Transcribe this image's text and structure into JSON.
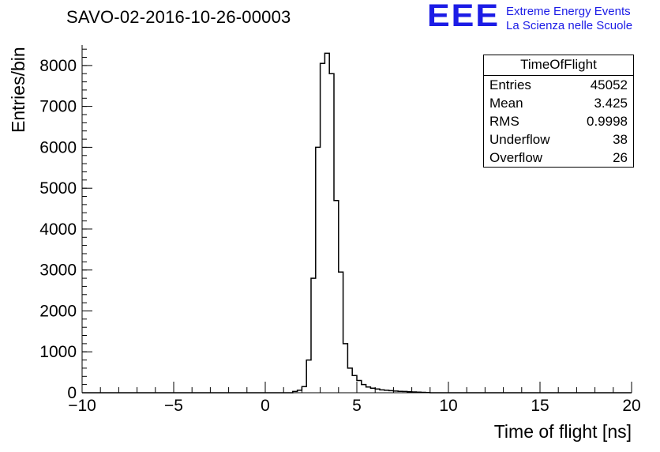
{
  "logo": {
    "text": "EEE",
    "line1": "Extreme Energy Events",
    "line2": "La Scienza nelle Scuole",
    "color": "#1c1ce6"
  },
  "stats": {
    "title": "TimeOfFlight",
    "rows": [
      {
        "label": "Entries",
        "value": "45052"
      },
      {
        "label": "Mean",
        "value": "3.425"
      },
      {
        "label": "RMS",
        "value": "0.9998"
      },
      {
        "label": "Underflow",
        "value": "38"
      },
      {
        "label": "Overflow",
        "value": "26"
      }
    ]
  },
  "chart_data": {
    "type": "histogram",
    "title": "SAVO-02-2016-10-26-00003",
    "xlabel": "Time of flight [ns]",
    "ylabel": "Entries/bin",
    "xlim": [
      -10,
      20
    ],
    "ylim": [
      0,
      8500
    ],
    "grid": false,
    "line_color": "#000000",
    "x_minor_step": 1,
    "y_minor_step": 200,
    "x_major_ticks": [
      {
        "v": -10,
        "label": "−10"
      },
      {
        "v": -5,
        "label": "−5"
      },
      {
        "v": 0,
        "label": "0"
      },
      {
        "v": 5,
        "label": "5"
      },
      {
        "v": 10,
        "label": "10"
      },
      {
        "v": 15,
        "label": "15"
      },
      {
        "v": 20,
        "label": "20"
      }
    ],
    "y_major_ticks": [
      {
        "v": 0,
        "label": "0"
      },
      {
        "v": 1000,
        "label": "1000"
      },
      {
        "v": 2000,
        "label": "2000"
      },
      {
        "v": 3000,
        "label": "3000"
      },
      {
        "v": 4000,
        "label": "4000"
      },
      {
        "v": 5000,
        "label": "5000"
      },
      {
        "v": 6000,
        "label": "6000"
      },
      {
        "v": 7000,
        "label": "7000"
      },
      {
        "v": 8000,
        "label": "8000"
      }
    ],
    "bins": {
      "start": 1.5,
      "width": 0.25,
      "counts": [
        30,
        60,
        150,
        800,
        2800,
        6000,
        8050,
        8300,
        7800,
        4700,
        2950,
        1200,
        600,
        420,
        300,
        200,
        140,
        110,
        90,
        70,
        60,
        50,
        40,
        35,
        30,
        25,
        20,
        15,
        10,
        5
      ]
    }
  }
}
